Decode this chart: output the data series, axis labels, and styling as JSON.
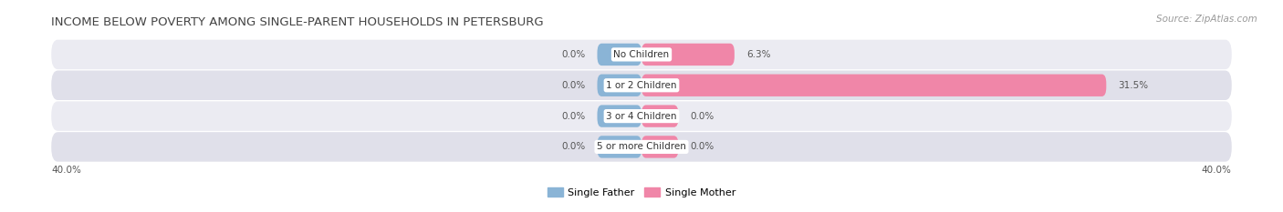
{
  "title": "INCOME BELOW POVERTY AMONG SINGLE-PARENT HOUSEHOLDS IN PETERSBURG",
  "source": "Source: ZipAtlas.com",
  "categories": [
    "No Children",
    "1 or 2 Children",
    "3 or 4 Children",
    "5 or more Children"
  ],
  "single_father": [
    0.0,
    0.0,
    0.0,
    0.0
  ],
  "single_mother": [
    6.3,
    31.5,
    0.0,
    0.0
  ],
  "xlim": [
    -40.0,
    40.0
  ],
  "x_left_label": "40.0%",
  "x_right_label": "40.0%",
  "father_color": "#8ab4d6",
  "mother_color": "#f086a8",
  "row_colors": [
    "#ebebf2",
    "#e0e0ea",
    "#ebebf2",
    "#e0e0ea"
  ],
  "title_fontsize": 9.5,
  "source_fontsize": 7.5,
  "legend_father": "Single Father",
  "legend_mother": "Single Mother",
  "label_fontsize": 7.5,
  "category_fontsize": 7.5,
  "father_stub": 3.0,
  "mother_stub": 2.5
}
